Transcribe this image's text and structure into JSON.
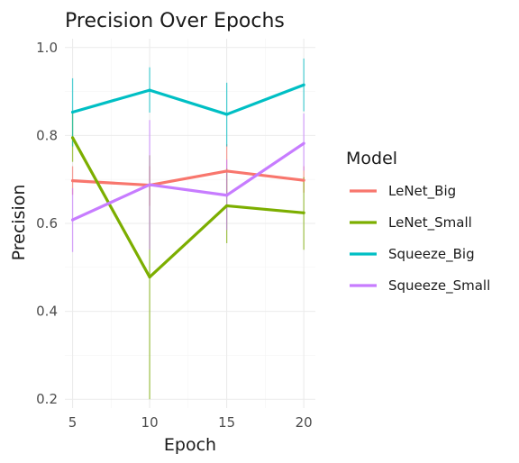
{
  "chart_data": {
    "type": "line",
    "title": "Precision Over Epochs",
    "xlabel": "Epoch",
    "ylabel": "Precision",
    "x": [
      5,
      10,
      15,
      20
    ],
    "xticks": [
      5,
      10,
      15,
      20
    ],
    "xlim": [
      4.5,
      20.75
    ],
    "yticks": [
      0.2,
      0.4,
      0.6,
      0.8,
      1.0
    ],
    "ytick_labels": [
      "0.2",
      "0.4",
      "0.6",
      "0.8",
      "1.0"
    ],
    "ylim": [
      0.18,
      1.02
    ],
    "grid": true,
    "legend": {
      "title": "Model",
      "position": "right"
    },
    "series": [
      {
        "name": "LeNet_Big",
        "color": "#F8766D",
        "values": [
          0.697,
          0.687,
          0.719,
          0.698
        ],
        "error_low": [
          0.665,
          0.64,
          0.66,
          0.67
        ],
        "error_high": [
          0.73,
          0.73,
          0.78,
          0.73
        ]
      },
      {
        "name": "LeNet_Small",
        "color": "#7CAE00",
        "values": [
          0.795,
          0.478,
          0.64,
          0.624
        ],
        "error_low": [
          0.74,
          0.2,
          0.555,
          0.54
        ],
        "error_high": [
          0.85,
          0.755,
          0.725,
          0.705
        ]
      },
      {
        "name": "Squeeze_Big",
        "color": "#00BFC4",
        "values": [
          0.853,
          0.903,
          0.848,
          0.915
        ],
        "error_low": [
          0.775,
          0.852,
          0.775,
          0.855
        ],
        "error_high": [
          0.93,
          0.955,
          0.92,
          0.975
        ]
      },
      {
        "name": "Squeeze_Small",
        "color": "#C77CFF",
        "values": [
          0.608,
          0.688,
          0.664,
          0.782
        ],
        "error_low": [
          0.535,
          0.54,
          0.585,
          0.72
        ],
        "error_high": [
          0.68,
          0.835,
          0.745,
          0.85
        ]
      }
    ]
  }
}
